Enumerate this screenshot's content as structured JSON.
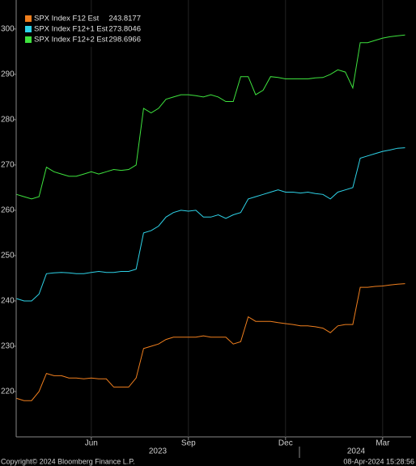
{
  "chart_data": {
    "type": "line",
    "categories": [
      null,
      null,
      null,
      null,
      null,
      null,
      null,
      null,
      null,
      null,
      "Jun",
      null,
      null,
      null,
      null,
      null,
      null,
      null,
      null,
      null,
      null,
      null,
      null,
      "Sep",
      null,
      null,
      null,
      null,
      null,
      null,
      null,
      null,
      null,
      null,
      null,
      null,
      "Dec",
      null,
      null,
      null,
      null,
      null,
      null,
      null,
      null,
      null,
      null,
      null,
      null,
      "Mar",
      null,
      null,
      null
    ],
    "years": [
      "2023",
      "2024"
    ],
    "series": [
      {
        "name": "SPX Index F12 Est",
        "color": "#f07f1e",
        "values": [
          218.5,
          218,
          218,
          220,
          224,
          223.5,
          223.5,
          223,
          223,
          222.8,
          223,
          222.8,
          222.8,
          221,
          221,
          221,
          223,
          229.5,
          230,
          230.5,
          231.5,
          232,
          232,
          232,
          232,
          232.3,
          232,
          232,
          232,
          230.5,
          231,
          236.5,
          235.5,
          235.5,
          235.5,
          235.2,
          235,
          234.8,
          234.5,
          234.5,
          234.3,
          234,
          233,
          234.5,
          234.8,
          234.8,
          243,
          243,
          243.2,
          243.3,
          243.5,
          243.7,
          243.8177
        ]
      },
      {
        "name": "SPX Index F12+1 Est",
        "color": "#2ed3e8",
        "values": [
          240.5,
          240,
          240,
          241.5,
          246,
          246.2,
          246.3,
          246.2,
          246,
          246,
          246.3,
          246.5,
          246.3,
          246.3,
          246.5,
          246.5,
          247,
          255,
          255.5,
          256.5,
          258.5,
          259.5,
          260,
          259.8,
          260,
          258.5,
          258.5,
          259,
          258.2,
          259,
          259.5,
          262.5,
          263,
          263.5,
          264,
          264.5,
          264,
          264,
          263.8,
          264,
          263.7,
          263.5,
          262.5,
          264,
          264.5,
          265,
          271.5,
          272,
          272.5,
          273,
          273.3,
          273.7,
          273.8046
        ]
      },
      {
        "name": "SPX Index F12+2 Est",
        "color": "#3ee33e",
        "values": [
          263.5,
          263,
          262.5,
          263,
          269.5,
          268.5,
          268,
          267.5,
          267.5,
          268,
          268.5,
          268,
          268.5,
          269,
          268.8,
          269,
          270,
          282.5,
          281.5,
          282.5,
          284.5,
          285,
          285.5,
          285.5,
          285.3,
          285,
          285.5,
          285,
          284,
          284,
          289.5,
          289.5,
          285.5,
          286.5,
          289.5,
          289.3,
          289,
          289,
          289,
          289,
          289.2,
          289.3,
          290,
          291,
          290.5,
          287,
          297,
          297,
          297.5,
          298,
          298.3,
          298.5,
          298.6966
        ]
      }
    ],
    "ylim": [
      210,
      306.4
    ],
    "yticks": [
      220,
      230,
      240,
      250,
      260,
      270,
      280,
      290,
      300
    ],
    "grid": false,
    "legend": "top-left",
    "copyright": "Copyright© 2024 Bloomberg Finance L.P.",
    "timestamp": "08-Apr-2024 15:28:56"
  }
}
